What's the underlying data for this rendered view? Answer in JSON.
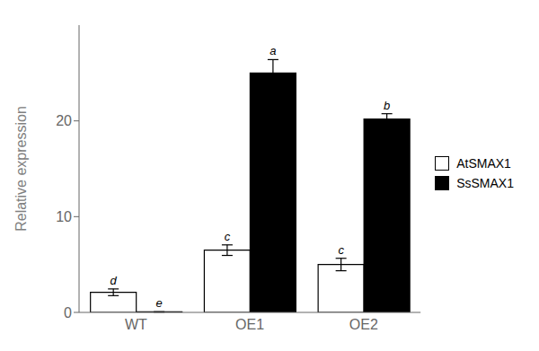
{
  "chart_data": {
    "type": "bar",
    "categories": [
      "WT",
      "OE1",
      "OE2"
    ],
    "ylabel": "Relative expression",
    "series": [
      {
        "name": "AtSMAX1",
        "color": "#ffffff",
        "values": [
          2.1,
          6.5,
          5.0
        ],
        "errors": [
          0.35,
          0.55,
          0.65
        ],
        "labels": [
          "d",
          "c",
          "c"
        ]
      },
      {
        "name": "SsSMAX1",
        "color": "#000000",
        "values": [
          0.05,
          25.0,
          20.2
        ],
        "errors": [
          0.02,
          1.4,
          0.55
        ],
        "labels": [
          "e",
          "a",
          "b"
        ]
      }
    ],
    "ylim": [
      0,
      30
    ],
    "yticks": [
      0,
      10,
      20
    ],
    "grid": false,
    "legend": "right"
  }
}
